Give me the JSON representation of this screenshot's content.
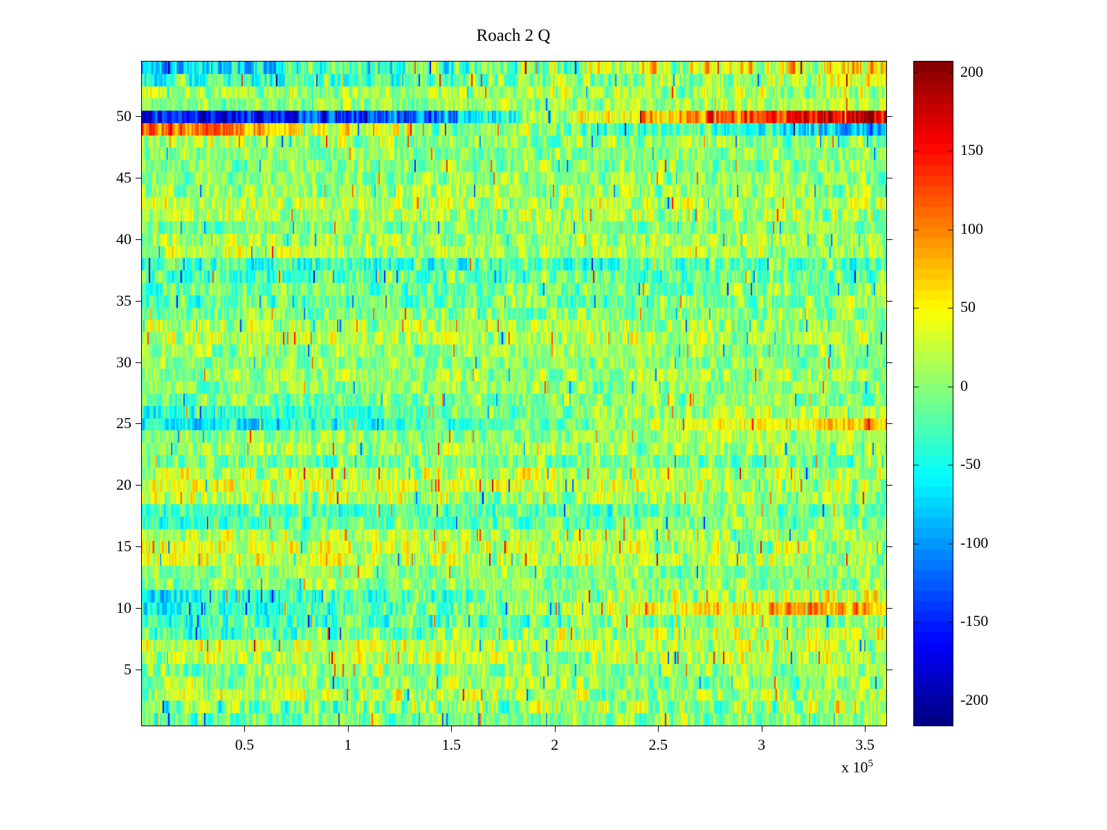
{
  "figure": {
    "background": "#ffffff"
  },
  "chart_data": {
    "type": "heatmap",
    "title": "Roach 2 Q",
    "colormap": "jet",
    "x_axis": {
      "range": [
        0,
        360000
      ],
      "ticks": [
        50000,
        100000,
        150000,
        200000,
        250000,
        300000,
        350000
      ],
      "tick_labels": [
        "0.5",
        "1",
        "1.5",
        "2",
        "2.5",
        "3",
        "3.5"
      ],
      "multiplier": {
        "prefix": "x 10",
        "exponent": "5"
      }
    },
    "y_axis": {
      "range": [
        0.5,
        54.5
      ],
      "ticks": [
        5,
        10,
        15,
        20,
        25,
        30,
        35,
        40,
        45,
        50
      ],
      "tick_labels": [
        "5",
        "10",
        "15",
        "20",
        "25",
        "30",
        "35",
        "40",
        "45",
        "50"
      ]
    },
    "colorbar": {
      "range": [
        -216,
        207
      ],
      "ticks": [
        200,
        150,
        100,
        50,
        0,
        -50,
        -100,
        -150,
        -200
      ],
      "tick_labels": [
        "200",
        "150",
        "100",
        "50",
        "0",
        "-50",
        "-100",
        "-150",
        "-200"
      ]
    },
    "n_rows": 54,
    "seed": 1337,
    "rows": [
      {
        "row": 54,
        "stops": [
          -70,
          -20,
          20,
          70
        ],
        "noise": 65
      },
      {
        "row": 53,
        "stops": [
          -35,
          0,
          30
        ],
        "noise": 55
      },
      {
        "row": 52,
        "stops": [
          20,
          15,
          10
        ],
        "noise": 45
      },
      {
        "row": 51,
        "stops": [
          0,
          10,
          20
        ],
        "noise": 40
      },
      {
        "row": 50,
        "stops": [
          -160,
          -150,
          -120,
          40,
          120,
          175
        ],
        "noise": 55
      },
      {
        "row": 49,
        "stops": [
          125,
          60,
          10,
          -10,
          -30,
          -100
        ],
        "noise": 50
      },
      {
        "row": 48,
        "stops": [
          10,
          5,
          0
        ],
        "noise": 45
      },
      {
        "row": 47,
        "stops": [
          -5,
          5
        ],
        "noise": 40
      },
      {
        "row": 46,
        "stops": [
          0,
          0
        ],
        "noise": 45
      },
      {
        "row": 45,
        "stops": [
          -5,
          5
        ],
        "noise": 40
      },
      {
        "row": 44,
        "stops": [
          10,
          5
        ],
        "noise": 45
      },
      {
        "row": 43,
        "stops": [
          20,
          15
        ],
        "noise": 45
      },
      {
        "row": 42,
        "stops": [
          15,
          10
        ],
        "noise": 50
      },
      {
        "row": 41,
        "stops": [
          -10,
          0
        ],
        "noise": 40
      },
      {
        "row": 40,
        "stops": [
          5,
          10
        ],
        "noise": 45
      },
      {
        "row": 39,
        "stops": [
          25,
          15
        ],
        "noise": 45
      },
      {
        "row": 38,
        "stops": [
          -35,
          -20
        ],
        "noise": 50
      },
      {
        "row": 37,
        "stops": [
          -25,
          -10
        ],
        "noise": 50
      },
      {
        "row": 36,
        "stops": [
          -15,
          -5
        ],
        "noise": 45
      },
      {
        "row": 35,
        "stops": [
          -20,
          0
        ],
        "noise": 45
      },
      {
        "row": 34,
        "stops": [
          -10,
          5
        ],
        "noise": 45
      },
      {
        "row": 33,
        "stops": [
          15,
          10
        ],
        "noise": 45
      },
      {
        "row": 32,
        "stops": [
          20,
          10
        ],
        "noise": 45
      },
      {
        "row": 31,
        "stops": [
          0,
          5
        ],
        "noise": 40
      },
      {
        "row": 30,
        "stops": [
          -5,
          0
        ],
        "noise": 40
      },
      {
        "row": 29,
        "stops": [
          5,
          5
        ],
        "noise": 40
      },
      {
        "row": 28,
        "stops": [
          0,
          0
        ],
        "noise": 40
      },
      {
        "row": 27,
        "stops": [
          -10,
          0
        ],
        "noise": 40
      },
      {
        "row": 26,
        "stops": [
          -45,
          -10,
          25
        ],
        "noise": 45
      },
      {
        "row": 25,
        "stops": [
          -60,
          -40,
          10,
          70
        ],
        "noise": 42
      },
      {
        "row": 24,
        "stops": [
          0,
          10
        ],
        "noise": 40
      },
      {
        "row": 23,
        "stops": [
          10,
          5
        ],
        "noise": 45
      },
      {
        "row": 22,
        "stops": [
          -15,
          -5
        ],
        "noise": 45
      },
      {
        "row": 21,
        "stops": [
          25,
          10
        ],
        "noise": 50
      },
      {
        "row": 20,
        "stops": [
          35,
          20,
          15
        ],
        "noise": 50
      },
      {
        "row": 19,
        "stops": [
          30,
          10,
          5
        ],
        "noise": 50
      },
      {
        "row": 18,
        "stops": [
          -30,
          -10
        ],
        "noise": 45
      },
      {
        "row": 17,
        "stops": [
          -25,
          -5
        ],
        "noise": 45
      },
      {
        "row": 16,
        "stops": [
          20,
          5
        ],
        "noise": 45
      },
      {
        "row": 15,
        "stops": [
          35,
          20,
          10
        ],
        "noise": 50
      },
      {
        "row": 14,
        "stops": [
          30,
          10
        ],
        "noise": 50
      },
      {
        "row": 13,
        "stops": [
          0,
          0
        ],
        "noise": 40
      },
      {
        "row": 12,
        "stops": [
          -5,
          5
        ],
        "noise": 40
      },
      {
        "row": 11,
        "stops": [
          -50,
          -10,
          35
        ],
        "noise": 50
      },
      {
        "row": 10,
        "stops": [
          -55,
          -20,
          40,
          90
        ],
        "noise": 50
      },
      {
        "row": 9,
        "stops": [
          -35,
          -10,
          10
        ],
        "noise": 50
      },
      {
        "row": 8,
        "stops": [
          -30,
          0,
          25
        ],
        "noise": 50
      },
      {
        "row": 7,
        "stops": [
          25,
          20
        ],
        "noise": 50
      },
      {
        "row": 6,
        "stops": [
          20,
          15
        ],
        "noise": 50
      },
      {
        "row": 5,
        "stops": [
          0,
          10
        ],
        "noise": 45
      },
      {
        "row": 4,
        "stops": [
          5,
          5
        ],
        "noise": 45
      },
      {
        "row": 3,
        "stops": [
          15,
          10
        ],
        "noise": 50
      },
      {
        "row": 2,
        "stops": [
          -10,
          5,
          20
        ],
        "noise": 60
      },
      {
        "row": 1,
        "stops": [
          -15,
          5
        ],
        "noise": 45
      }
    ]
  }
}
